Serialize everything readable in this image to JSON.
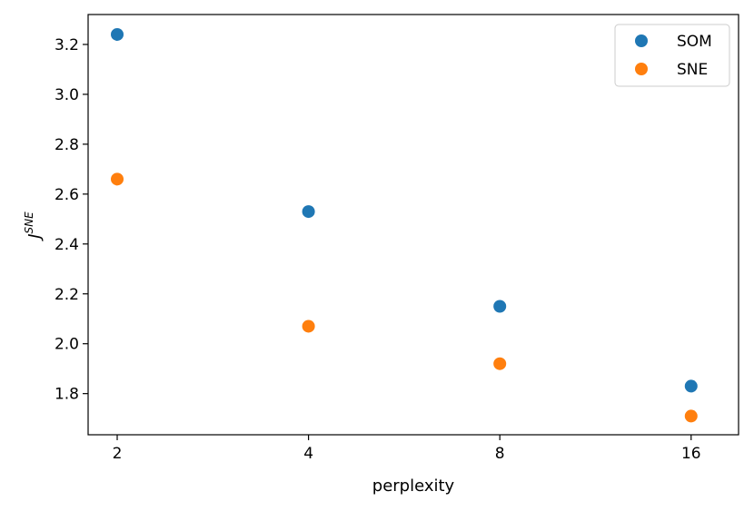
{
  "chart_data": {
    "type": "scatter",
    "xlabel": "perplexity",
    "ylabel": "J",
    "ylabel_superscript": "SNE",
    "x_scale": "log2",
    "xlim": [
      1.8,
      19.0
    ],
    "ylim": [
      1.635,
      3.32
    ],
    "x_ticks": [
      2,
      4,
      8,
      16
    ],
    "x_tick_labels": [
      "2",
      "4",
      "8",
      "16"
    ],
    "y_ticks": [
      1.8,
      2.0,
      2.2,
      2.4,
      2.6,
      2.8,
      3.0,
      3.2
    ],
    "y_tick_labels": [
      "1.8",
      "2.0",
      "2.2",
      "2.4",
      "2.6",
      "2.8",
      "3.0",
      "3.2"
    ],
    "grid": false,
    "legend": {
      "position": "top-right"
    },
    "series": [
      {
        "name": "SOM",
        "color": "#1f77b4",
        "points": [
          {
            "x": 2,
            "y": 3.24
          },
          {
            "x": 4,
            "y": 2.53
          },
          {
            "x": 8,
            "y": 2.15
          },
          {
            "x": 16,
            "y": 1.83
          }
        ]
      },
      {
        "name": "SNE",
        "color": "#ff7f0e",
        "points": [
          {
            "x": 2,
            "y": 2.66
          },
          {
            "x": 4,
            "y": 2.07
          },
          {
            "x": 8,
            "y": 1.92
          },
          {
            "x": 16,
            "y": 1.71
          }
        ]
      }
    ]
  }
}
